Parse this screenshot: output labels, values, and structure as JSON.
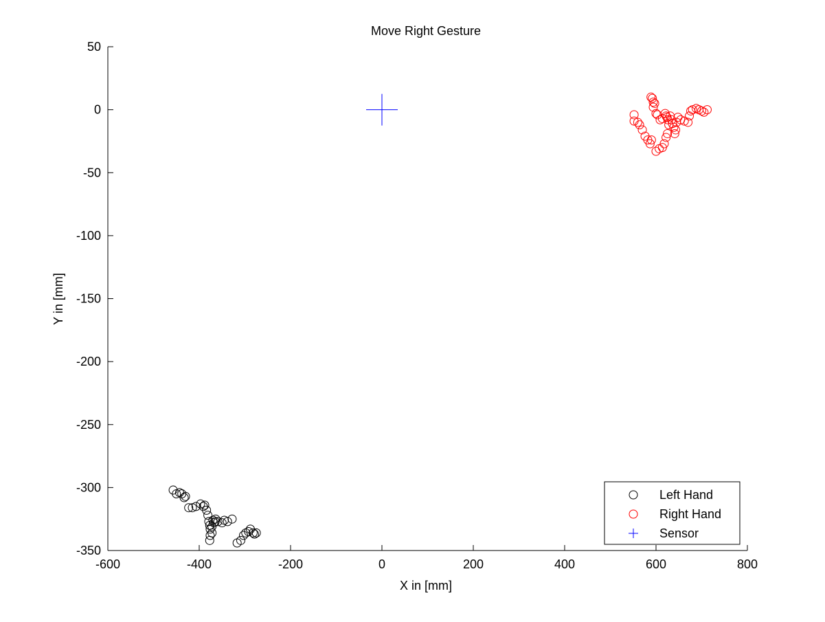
{
  "chart_data": {
    "type": "scatter",
    "title": "Move Right Gesture",
    "xlabel": "X in [mm]",
    "ylabel": "Y in [mm]",
    "xlim": [
      -600,
      800
    ],
    "ylim": [
      -350,
      50
    ],
    "xticks": [
      -600,
      -400,
      -200,
      0,
      200,
      400,
      600,
      800
    ],
    "yticks": [
      50,
      0,
      -50,
      -100,
      -150,
      -200,
      -250,
      -300,
      -350
    ],
    "grid": false,
    "legend_position": "bottom-right",
    "series": [
      {
        "name": "Left Hand",
        "marker": "circle",
        "color": "#000000",
        "points": [
          [
            -457,
            -302
          ],
          [
            -450,
            -305
          ],
          [
            -443,
            -304
          ],
          [
            -438,
            -305
          ],
          [
            -433,
            -308
          ],
          [
            -430,
            -307
          ],
          [
            -423,
            -316
          ],
          [
            -415,
            -316
          ],
          [
            -407,
            -315
          ],
          [
            -397,
            -313
          ],
          [
            -391,
            -315
          ],
          [
            -388,
            -314
          ],
          [
            -384,
            -318
          ],
          [
            -381,
            -322
          ],
          [
            -379,
            -327
          ],
          [
            -377,
            -330
          ],
          [
            -376,
            -333
          ],
          [
            -376,
            -338
          ],
          [
            -377,
            -342
          ],
          [
            -372,
            -336
          ],
          [
            -372,
            -331
          ],
          [
            -370,
            -326
          ],
          [
            -368,
            -328
          ],
          [
            -365,
            -327
          ],
          [
            -364,
            -325
          ],
          [
            -359,
            -327
          ],
          [
            -350,
            -328
          ],
          [
            -345,
            -326
          ],
          [
            -338,
            -327
          ],
          [
            -328,
            -325
          ],
          [
            -317,
            -344
          ],
          [
            -309,
            -342
          ],
          [
            -303,
            -338
          ],
          [
            -298,
            -336
          ],
          [
            -292,
            -335
          ],
          [
            -288,
            -333
          ],
          [
            -282,
            -336
          ],
          [
            -279,
            -337
          ],
          [
            -275,
            -336
          ]
        ]
      },
      {
        "name": "Right Hand",
        "marker": "circle",
        "color": "#ff0000",
        "points": [
          [
            552,
            -4
          ],
          [
            552,
            -9
          ],
          [
            560,
            -10
          ],
          [
            564,
            -12
          ],
          [
            570,
            -16
          ],
          [
            576,
            -21
          ],
          [
            582,
            -24
          ],
          [
            587,
            -27
          ],
          [
            590,
            -24
          ],
          [
            589,
            10
          ],
          [
            592,
            9
          ],
          [
            594,
            6
          ],
          [
            594,
            2
          ],
          [
            597,
            5
          ],
          [
            600,
            -3
          ],
          [
            603,
            -4
          ],
          [
            609,
            -8
          ],
          [
            614,
            -7
          ],
          [
            620,
            -3
          ],
          [
            622,
            -5
          ],
          [
            624,
            -6
          ],
          [
            626,
            -8
          ],
          [
            628,
            -12
          ],
          [
            631,
            -5
          ],
          [
            634,
            -8
          ],
          [
            636,
            -11
          ],
          [
            639,
            -14
          ],
          [
            641,
            -19
          ],
          [
            643,
            -16
          ],
          [
            645,
            -10
          ],
          [
            648,
            -6
          ],
          [
            654,
            -8
          ],
          [
            662,
            -9
          ],
          [
            670,
            -10
          ],
          [
            673,
            -5
          ],
          [
            676,
            -1
          ],
          [
            680,
            0
          ],
          [
            688,
            1
          ],
          [
            694,
            0
          ],
          [
            700,
            -1
          ],
          [
            705,
            -2
          ],
          [
            712,
            0
          ],
          [
            600,
            -33
          ],
          [
            607,
            -31
          ],
          [
            614,
            -30
          ],
          [
            618,
            -27
          ],
          [
            622,
            -22
          ],
          [
            625,
            -19
          ]
        ]
      },
      {
        "name": "Sensor",
        "marker": "plus",
        "color": "#0000ff",
        "points": [
          [
            0,
            0
          ]
        ]
      }
    ]
  }
}
